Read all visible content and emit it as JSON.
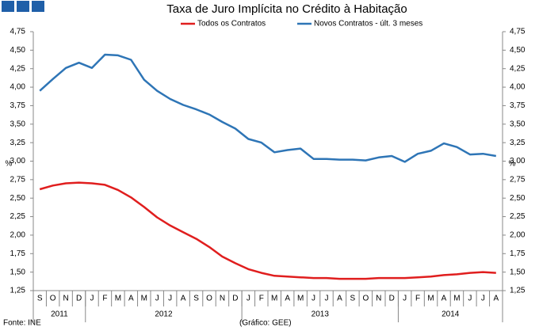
{
  "chart_data": {
    "type": "line",
    "title": "Taxa de Juro Implícita no Crédito à Habitação",
    "ylabel": "%",
    "y2label": "%",
    "source": "Fonte: INE",
    "credit": "(Gráfico: GEE)",
    "categories": [
      "S",
      "O",
      "N",
      "D",
      "J",
      "F",
      "M",
      "A",
      "M",
      "J",
      "J",
      "A",
      "S",
      "O",
      "N",
      "D",
      "J",
      "F",
      "M",
      "A",
      "M",
      "J",
      "J",
      "A",
      "S",
      "O",
      "N",
      "D",
      "J",
      "F",
      "M",
      "A",
      "M",
      "J",
      "J",
      "A"
    ],
    "years": [
      {
        "label": "2011",
        "months": 4
      },
      {
        "label": "2012",
        "months": 12
      },
      {
        "label": "2013",
        "months": 12
      },
      {
        "label": "2014",
        "months": 8
      }
    ],
    "series": [
      {
        "name": "Todos os Contratos",
        "color": "#e01e1e",
        "values": [
          2.62,
          2.67,
          2.7,
          2.71,
          2.7,
          2.68,
          2.61,
          2.51,
          2.38,
          2.24,
          2.13,
          2.04,
          1.95,
          1.84,
          1.71,
          1.62,
          1.54,
          1.49,
          1.45,
          1.44,
          1.43,
          1.42,
          1.42,
          1.41,
          1.41,
          1.41,
          1.42,
          1.42,
          1.42,
          1.43,
          1.44,
          1.46,
          1.47,
          1.49,
          1.5,
          1.49
        ]
      },
      {
        "name": "Novos Contratos - últ. 3 meses",
        "color": "#2e75b6",
        "values": [
          3.95,
          4.11,
          4.26,
          4.33,
          4.26,
          4.44,
          4.43,
          4.37,
          4.1,
          3.95,
          3.84,
          3.76,
          3.7,
          3.63,
          3.53,
          3.44,
          3.3,
          3.25,
          3.12,
          3.15,
          3.17,
          3.03,
          3.03,
          3.02,
          3.02,
          3.01,
          3.05,
          3.07,
          2.99,
          3.1,
          3.14,
          3.24,
          3.19,
          3.09,
          3.1,
          3.07
        ]
      }
    ],
    "ylim": [
      1.25,
      4.75
    ],
    "yticks": [
      {
        "value": 1.25,
        "label": "1,25"
      },
      {
        "value": 1.5,
        "label": "1,50"
      },
      {
        "value": 1.75,
        "label": "1,75"
      },
      {
        "value": 2,
        "label": "2,00"
      },
      {
        "value": 2.25,
        "label": "2,25"
      },
      {
        "value": 2.5,
        "label": "2,50"
      },
      {
        "value": 2.75,
        "label": "2,75"
      },
      {
        "value": 3,
        "label": "3,00"
      },
      {
        "value": 3.25,
        "label": "3,25"
      },
      {
        "value": 3.5,
        "label": "3,50"
      },
      {
        "value": 3.75,
        "label": "3,75"
      },
      {
        "value": 4,
        "label": "4,00"
      },
      {
        "value": 4.25,
        "label": "4,25"
      },
      {
        "value": 4.5,
        "label": "4,50"
      },
      {
        "value": 4.75,
        "label": "4,75"
      }
    ],
    "y2lim": [
      1.25,
      4.75
    ],
    "y2ticks": [
      {
        "value": 1.25,
        "label": "1,25"
      },
      {
        "value": 1.5,
        "label": "1,50"
      },
      {
        "value": 1.75,
        "label": "1,75"
      },
      {
        "value": 2,
        "label": "2,00"
      },
      {
        "value": 2.25,
        "label": "2,25"
      },
      {
        "value": 2.5,
        "label": "2,50"
      },
      {
        "value": 2.75,
        "label": "2,75"
      },
      {
        "value": 3,
        "label": "3,00"
      },
      {
        "value": 3.25,
        "label": "3,25"
      },
      {
        "value": 3.5,
        "label": "3,50"
      },
      {
        "value": 3.75,
        "label": "3,75"
      },
      {
        "value": 4,
        "label": "4,00"
      },
      {
        "value": 4.25,
        "label": "4,25"
      },
      {
        "value": 4.5,
        "label": "4,50"
      },
      {
        "value": 4.75,
        "label": "4,75"
      }
    ],
    "grid": false
  }
}
